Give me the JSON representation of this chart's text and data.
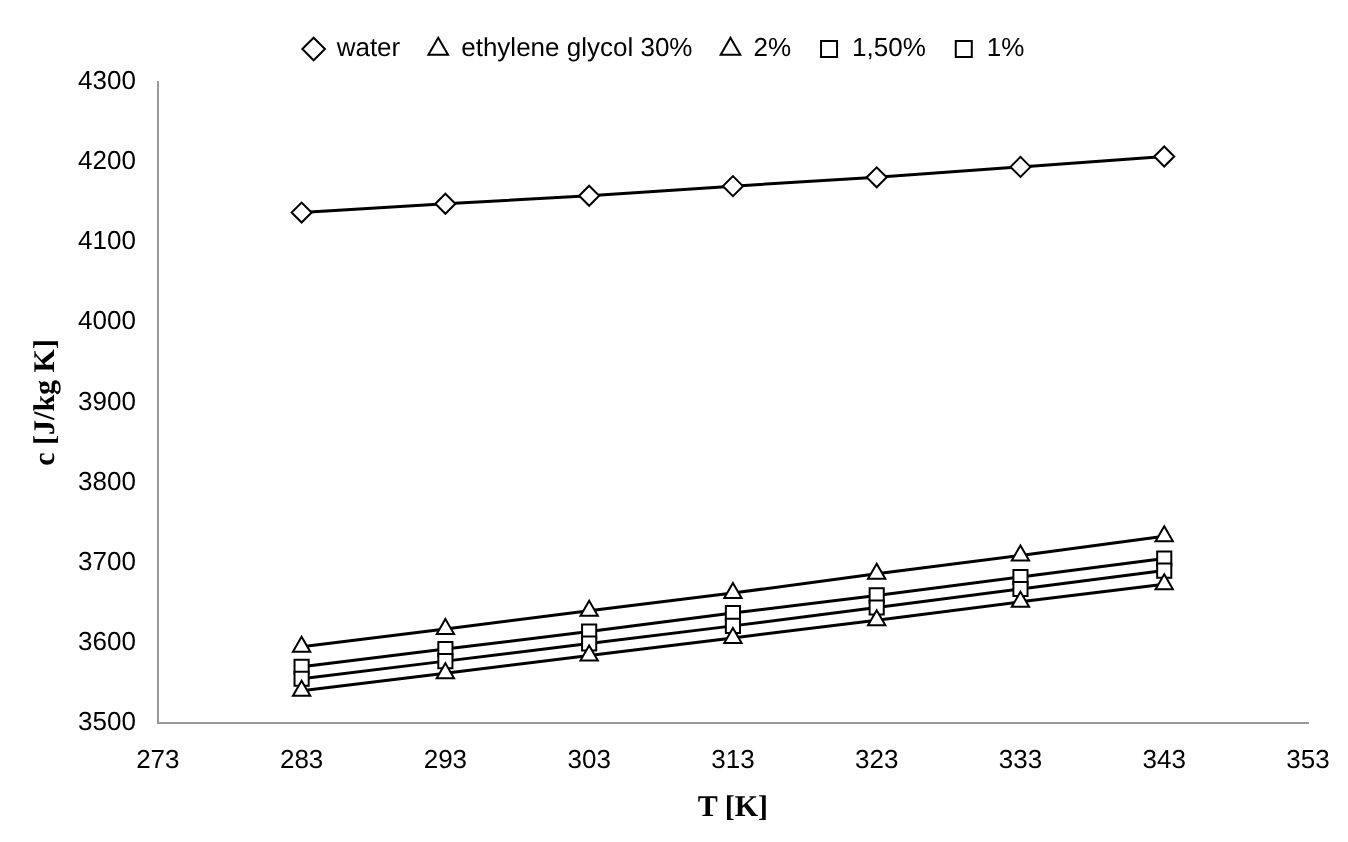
{
  "chart_data": {
    "type": "line",
    "xlabel": "T [K]",
    "ylabel": "c [J/kg K]",
    "x": [
      283,
      293,
      303,
      313,
      323,
      333,
      343
    ],
    "series": [
      {
        "name": "water",
        "color": "#000000",
        "marker": "diamond",
        "values": [
          4137,
          4148,
          4158,
          4170,
          4181,
          4194,
          4207
        ]
      },
      {
        "name": "ethylene glycol 30%",
        "color": "#000000",
        "marker": "triangle",
        "values": [
          3595,
          3617,
          3640,
          3662,
          3686,
          3709,
          3733
        ]
      },
      {
        "name": "2%",
        "color": "#000000",
        "marker": "triangle",
        "values": [
          3540,
          3562,
          3584,
          3606,
          3628,
          3651,
          3673
        ]
      },
      {
        "name": "1,50%",
        "color": "#000000",
        "marker": "square",
        "values": [
          3555,
          3577,
          3599,
          3621,
          3644,
          3667,
          3690
        ]
      },
      {
        "name": "1%",
        "color": "#000000",
        "marker": "square",
        "values": [
          3570,
          3592,
          3614,
          3637,
          3659,
          3682,
          3705
        ]
      }
    ],
    "xlim": [
      273,
      353
    ],
    "xticks": [
      273,
      283,
      293,
      303,
      313,
      323,
      333,
      343,
      353
    ],
    "ylim": [
      3500,
      4300
    ],
    "yticks": [
      3500,
      3600,
      3700,
      3800,
      3900,
      4000,
      4100,
      4200,
      4300
    ],
    "grid": false,
    "legend": "top",
    "line_style": "solid"
  }
}
